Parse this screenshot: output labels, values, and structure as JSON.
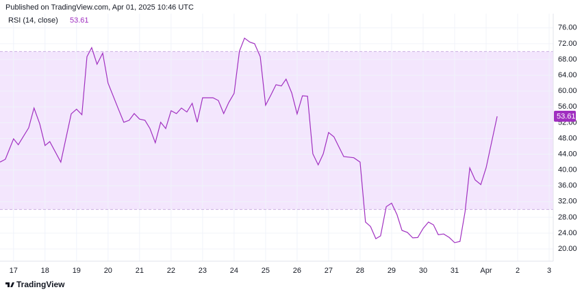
{
  "chart_data": {
    "type": "line",
    "header": "Published on TradingView.com, Apr 01, 2025 10:46 UTC",
    "footer": "TradingView",
    "series": [
      {
        "name": "RSI (14, close)",
        "color": "#a02fc0",
        "values": [
          42.0,
          42.7,
          47.9,
          46.4,
          50.7,
          55.7,
          51.7,
          46.2,
          47.2,
          42.0,
          54.2,
          55.4,
          54.0,
          68.7,
          71.0,
          66.8,
          69.6,
          62.0,
          55.4,
          52.1,
          52.6,
          54.3,
          52.9,
          52.6,
          50.5,
          46.9,
          52.1,
          50.5,
          55.0,
          54.3,
          55.7,
          54.7,
          56.9,
          52.1,
          58.3,
          58.3,
          57.6,
          54.3,
          57.1,
          59.4,
          70.1,
          73.4,
          72.4,
          72.0,
          68.7,
          56.4,
          59.0,
          61.6,
          61.3,
          63.0,
          59.5,
          54.2,
          58.8,
          58.7,
          44.1,
          41.3,
          44.1,
          49.5,
          48.4,
          45.8,
          43.4,
          43.1,
          42.0,
          26.8,
          25.7,
          22.6,
          23.3,
          30.7,
          31.6,
          28.7,
          24.7,
          24.2,
          22.8,
          22.9,
          25.2,
          26.8,
          26.1,
          23.6,
          23.8,
          22.9,
          21.6,
          21.9,
          29.4,
          40.5,
          37.5,
          36.3,
          40.6,
          53.61
        ]
      }
    ],
    "x": [
      16.57,
      16.74,
      17.0,
      17.15,
      17.48,
      17.65,
      17.83,
      18.0,
      18.15,
      18.5,
      18.83,
      19.0,
      19.17,
      19.33,
      19.48,
      19.65,
      19.83,
      20.0,
      20.33,
      20.5,
      20.67,
      20.83,
      21.0,
      21.17,
      21.33,
      21.5,
      21.67,
      21.83,
      22.0,
      22.17,
      22.33,
      22.5,
      22.67,
      22.83,
      23.0,
      23.33,
      23.5,
      23.67,
      23.83,
      24.0,
      24.17,
      24.33,
      24.5,
      24.65,
      24.83,
      25.0,
      25.17,
      25.33,
      25.5,
      25.65,
      25.83,
      26.0,
      26.17,
      26.33,
      26.5,
      26.67,
      26.83,
      27.0,
      27.17,
      27.33,
      27.48,
      27.8,
      28.0,
      28.17,
      28.33,
      28.5,
      28.65,
      28.83,
      29.0,
      29.17,
      29.33,
      29.5,
      29.67,
      29.83,
      30.0,
      30.17,
      30.33,
      30.48,
      30.65,
      30.83,
      31.0,
      31.17,
      31.33,
      31.48,
      31.65,
      31.83,
      32.0,
      32.35
    ],
    "xlim": [
      16.57,
      34.13
    ],
    "xticks": [
      17,
      18,
      19,
      20,
      21,
      22,
      23,
      24,
      25,
      26,
      27,
      28,
      29,
      30,
      31,
      {
        "value": 32,
        "label": "Apr"
      },
      {
        "value": 33,
        "label": "2"
      },
      {
        "value": 34,
        "label": "3"
      }
    ],
    "ylim": [
      16.9,
      79.6
    ],
    "yticks": [
      {
        "value": 20,
        "label": "20.00"
      },
      {
        "value": 24,
        "label": "24.00"
      },
      {
        "value": 28,
        "label": "28.00"
      },
      {
        "value": 32,
        "label": "32.00"
      },
      {
        "value": 36,
        "label": "36.00"
      },
      {
        "value": 40,
        "label": "40.00"
      },
      {
        "value": 44,
        "label": "44.00"
      },
      {
        "value": 48,
        "label": "48.00"
      },
      {
        "value": 52,
        "label": "52.00"
      },
      {
        "value": 56,
        "label": "56.00"
      },
      {
        "value": 60,
        "label": "60.00"
      },
      {
        "value": 64,
        "label": "64.00"
      },
      {
        "value": 68,
        "label": "68.00"
      },
      {
        "value": 72,
        "label": "72.00"
      },
      {
        "value": 76,
        "label": "76.00"
      }
    ],
    "bands": {
      "upper": 70,
      "lower": 30,
      "fill": "#f3e6fd",
      "line_color": "#c9aee0"
    },
    "grid": true
  }
}
